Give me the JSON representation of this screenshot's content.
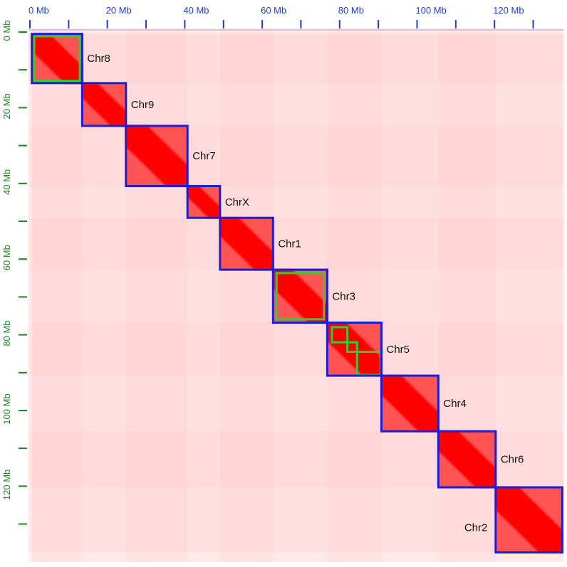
{
  "chart_data": {
    "type": "heatmap",
    "title": "",
    "xlabel": "",
    "ylabel": "",
    "xlim": [
      0,
      137.5
    ],
    "ylim": [
      0,
      137.5
    ],
    "units": "Mb",
    "x_ticks": {
      "major": [
        0,
        20,
        40,
        60,
        80,
        100,
        120
      ],
      "minor": [
        10,
        30,
        50,
        70,
        90,
        110,
        130
      ]
    },
    "y_ticks": {
      "major": [
        0,
        20,
        40,
        60,
        80,
        100,
        120
      ],
      "minor": [
        10,
        30,
        50,
        70,
        90,
        110,
        130
      ]
    },
    "x_tick_labels": [
      "0 Mb",
      "20 Mb",
      "40 Mb",
      "60 Mb",
      "80 Mb",
      "100 Mb",
      "120 Mb"
    ],
    "y_tick_labels": [
      "0 Mb",
      "20 Mb",
      "40 Mb",
      "60 Mb",
      "80 Mb",
      "100 Mb",
      "120 Mb"
    ],
    "chromosomes": [
      {
        "name": "Chr8",
        "start": 0.5,
        "end": 13.5
      },
      {
        "name": "Chr9",
        "start": 13.5,
        "end": 24.8
      },
      {
        "name": "Chr7",
        "start": 24.8,
        "end": 40.7
      },
      {
        "name": "ChrX",
        "start": 40.7,
        "end": 49.1
      },
      {
        "name": "Chr1",
        "start": 49.1,
        "end": 62.8
      },
      {
        "name": "Chr3",
        "start": 62.8,
        "end": 76.8
      },
      {
        "name": "Chr5",
        "start": 76.8,
        "end": 90.8
      },
      {
        "name": "Chr4",
        "start": 90.8,
        "end": 105.5
      },
      {
        "name": "Chr6",
        "start": 105.5,
        "end": 120.3
      },
      {
        "name": "Chr2",
        "start": 120.3,
        "end": 137.5
      }
    ],
    "contigs": [
      {
        "start": 1.1,
        "end": 12.9
      },
      {
        "start": 63.7,
        "end": 75.9
      },
      {
        "start": 78.0,
        "end": 82.0
      },
      {
        "start": 82.0,
        "end": 84.5
      },
      {
        "start": 84.5,
        "end": 90.6
      }
    ],
    "colors": {
      "heat": "#ff0000",
      "background": "#fff2f2",
      "chromosome_box": "#1d1dd6",
      "contig_box": "#33cc33",
      "x_axis": "#1f3fbf",
      "y_axis": "#1a8a1a"
    }
  }
}
